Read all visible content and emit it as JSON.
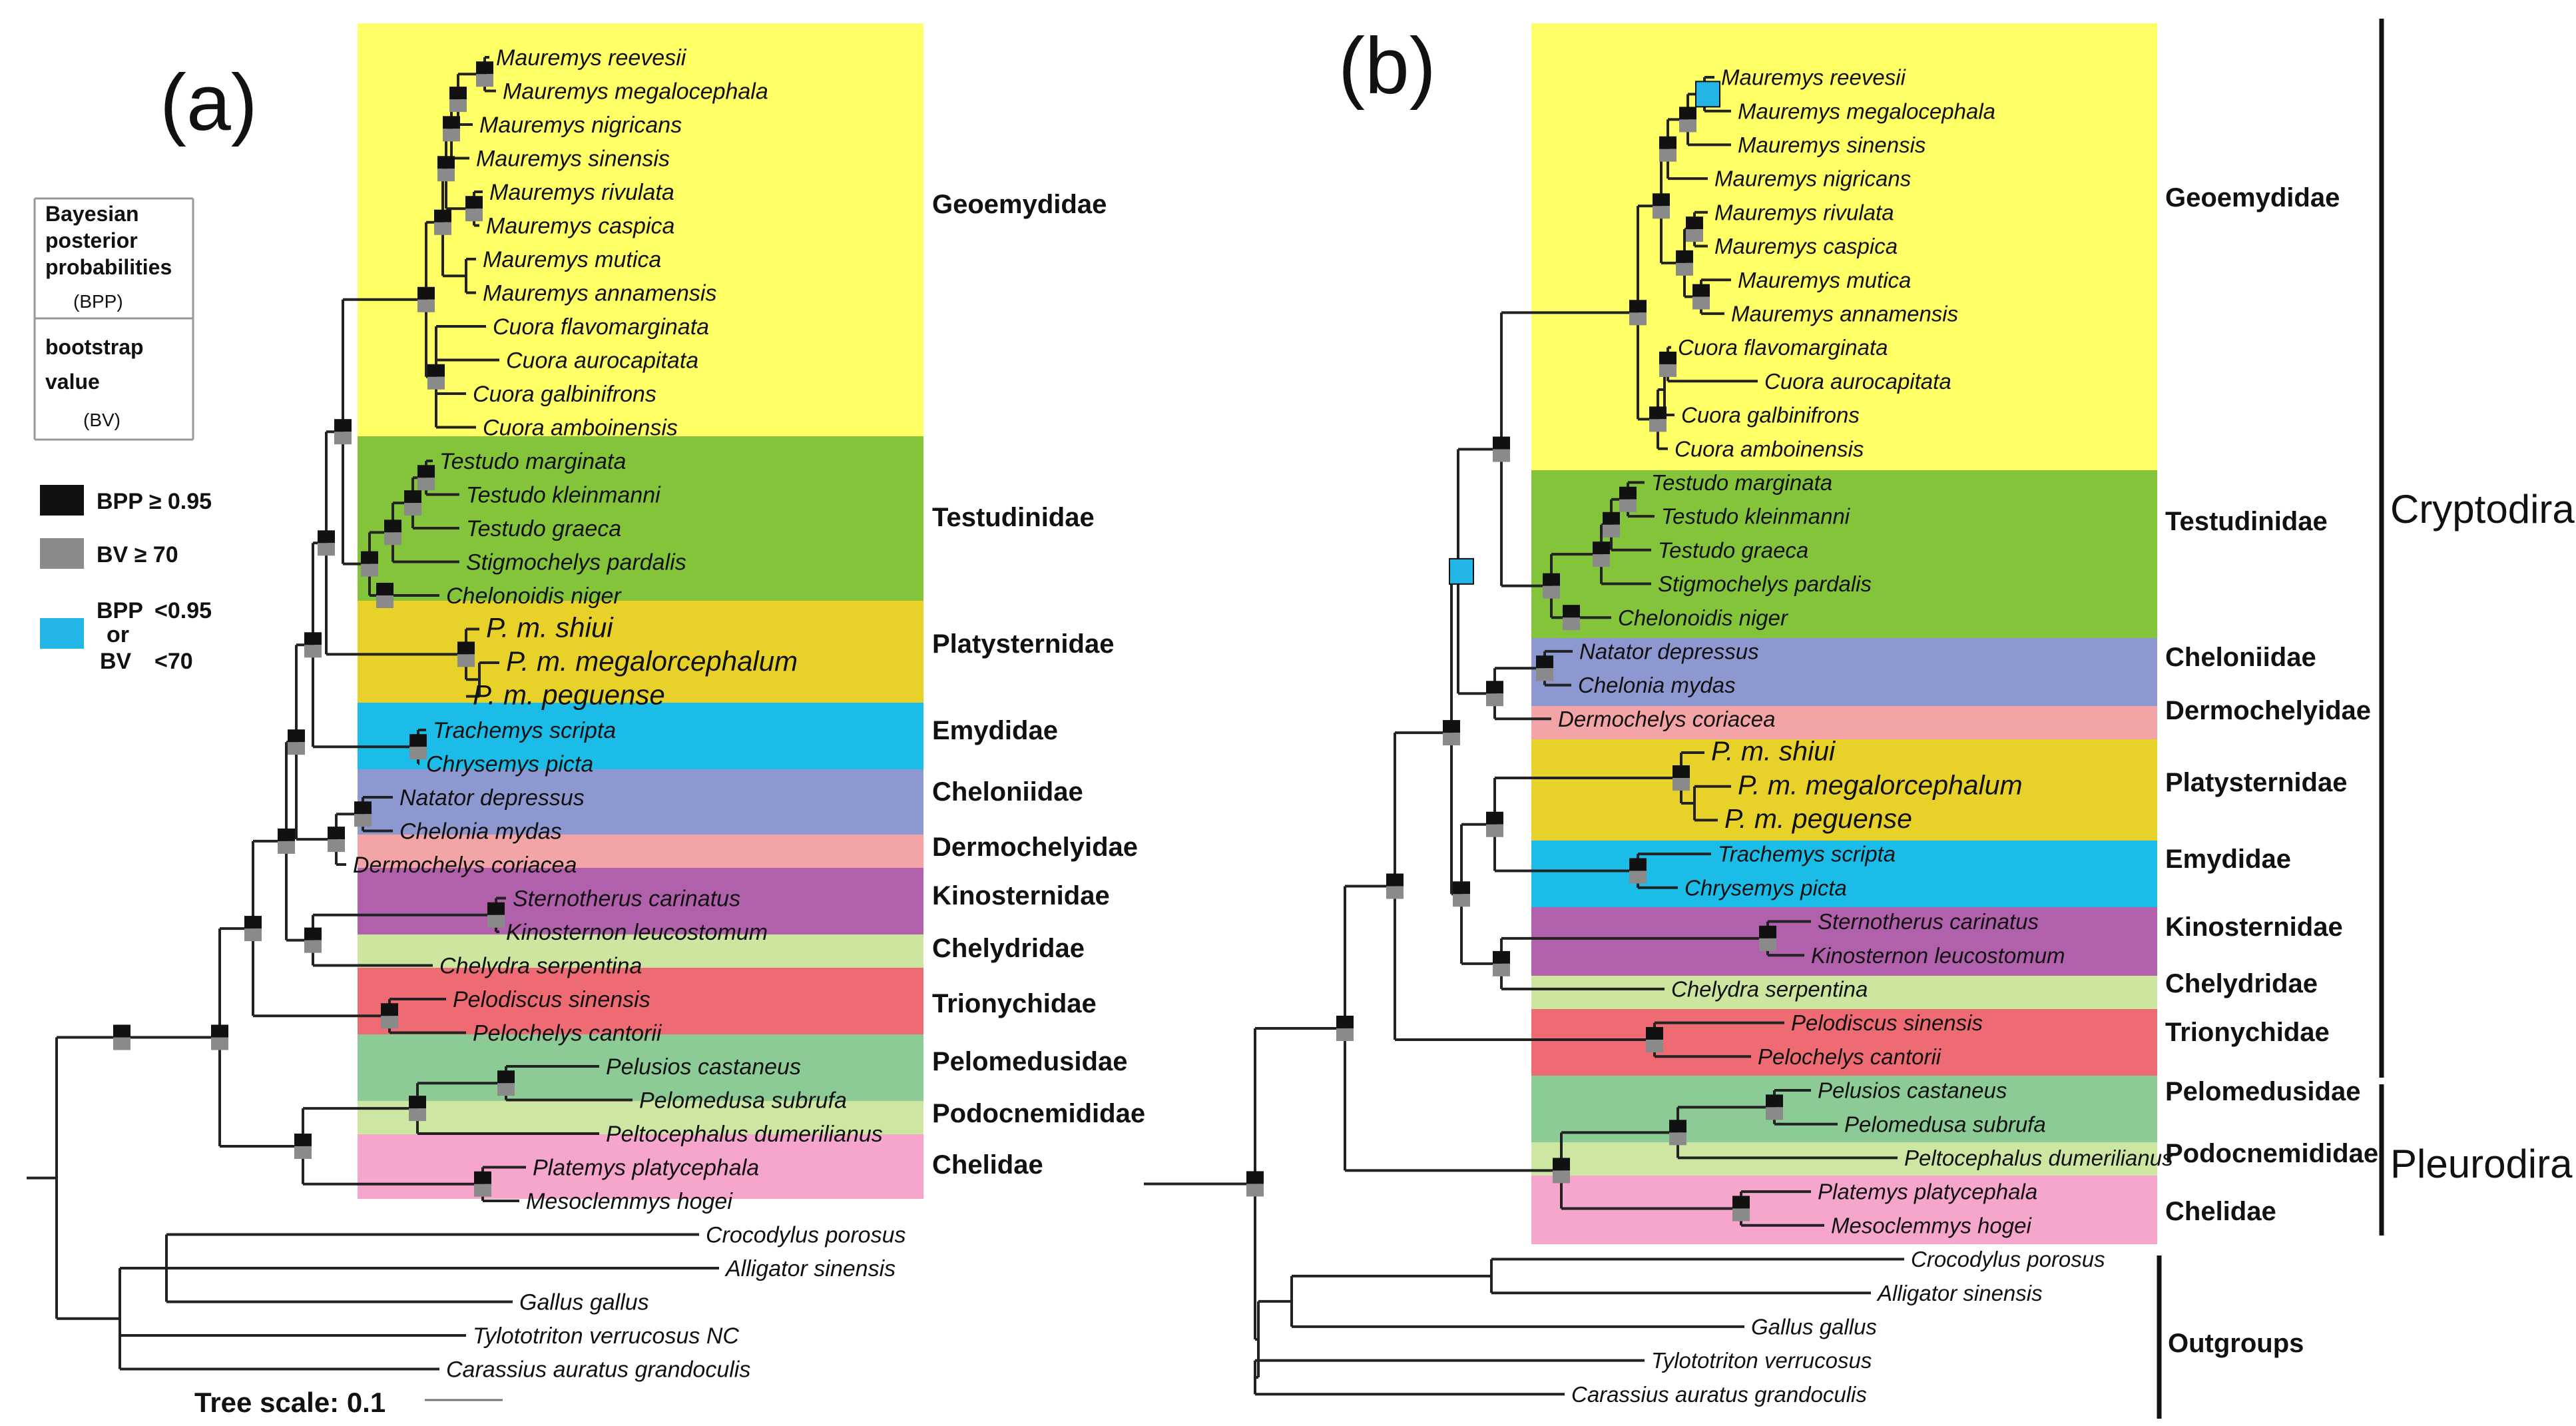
{
  "colors": {
    "Geoemydidae": "#ffff66",
    "Testudinidae": "#84c43a",
    "Platysternidae": "#e8d22a",
    "Emydidae": "#1bbde8",
    "Cheloniidae": "#8e98d0",
    "Dermochelyidae": "#f3a4a6",
    "Kinosternidae": "#b160ac",
    "Chelydridae": "#cce59f",
    "Trionychidae": "#ef6b74",
    "Pelomedusidae": "#8ccb95",
    "Podocnemididae": "#cde7a3",
    "Chelidae": "#f6a5cc",
    "node_bpp": "#111111",
    "node_bv": "#8a8a8a",
    "node_low": "#22b5e6",
    "highlight_taxon": "#e8201c"
  },
  "panel_a": {
    "label": "(a)",
    "taxa": [
      "Mauremys reevesii",
      "Mauremys megalocephala",
      "Mauremys nigricans",
      "Mauremys sinensis",
      "Mauremys rivulata",
      "Mauremys caspica",
      "Mauremys mutica",
      "Mauremys annamensis",
      "Cuora flavomarginata",
      "Cuora aurocapitata",
      "Cuora galbinifrons",
      "Cuora amboinensis",
      "Testudo marginata",
      "Testudo kleinmanni",
      "Testudo graeca",
      "Stigmochelys pardalis",
      "Chelonoidis niger",
      "P. m. shiui",
      "P. m. megalorcephalum",
      "P. m. peguense",
      "Trachemys scripta",
      "Chrysemys picta",
      "Natator depressus",
      "Chelonia mydas",
      "Dermochelys coriacea",
      "Sternotherus carinatus",
      "Kinosternon leucostomum",
      "Chelydra serpentina",
      "Pelodiscus sinensis",
      "Pelochelys cantorii",
      "Pelusios castaneus",
      "Pelomedusa subrufa",
      "Peltocephalus dumerilianus",
      "Platemys platycephala",
      "Mesoclemmys hogei",
      "Crocodylus porosus",
      "Alligator sinensis",
      "Gallus gallus",
      "Tylototriton verrucosus NC",
      "Carassius auratus grandoculis"
    ],
    "families": [
      "Geoemydidae",
      "Testudinidae",
      "Platysternidae",
      "Emydidae",
      "Cheloniidae",
      "Dermochelyidae",
      "Kinosternidae",
      "Chelydridae",
      "Trionychidae",
      "Pelomedusidae",
      "Podocnemididae",
      "Chelidae"
    ],
    "scale_label": "Tree scale: 0.1"
  },
  "panel_b": {
    "label": "(b)",
    "taxa": [
      "Mauremys reevesii",
      "Mauremys megalocephala",
      "Mauremys sinensis",
      "Mauremys nigricans",
      "Mauremys rivulata",
      "Mauremys caspica",
      "Mauremys mutica",
      "Mauremys annamensis",
      "Cuora flavomarginata",
      "Cuora aurocapitata",
      "Cuora galbinifrons",
      "Cuora amboinensis",
      "Testudo marginata",
      "Testudo kleinmanni",
      "Testudo graeca",
      "Stigmochelys pardalis",
      "Chelonoidis niger",
      "Natator depressus",
      "Chelonia mydas",
      "Dermochelys coriacea",
      "P. m. shiui",
      "P. m. megalorcephalum",
      "P. m. peguense",
      "Trachemys scripta",
      "Chrysemys picta",
      "Sternotherus carinatus",
      "Kinosternon leucostomum",
      "Chelydra serpentina",
      "Pelodiscus sinensis",
      "Pelochelys cantorii",
      "Pelusios castaneus",
      "Pelomedusa subrufa",
      "Peltocephalus dumerilianus",
      "Platemys platycephala",
      "Mesoclemmys hogei",
      "Crocodylus porosus",
      "Alligator sinensis",
      "Gallus gallus",
      "Tylototriton verrucosus",
      "Carassius auratus grandoculis"
    ],
    "families": [
      "Geoemydidae",
      "Testudinidae",
      "Cheloniidae",
      "Dermochelyidae",
      "Platysternidae",
      "Emydidae",
      "Kinosternidae",
      "Chelydridae",
      "Trionychidae",
      "Pelomedusidae",
      "Podocnemididae",
      "Chelidae"
    ],
    "groups": [
      "Cryptodira",
      "Pleurodira",
      "Outgroups"
    ]
  },
  "legend": {
    "bpp_title": [
      "Bayesian",
      "posterior",
      "probabilities"
    ],
    "bpp_abbr": "(BPP)",
    "bv_title": [
      "bootstrap",
      "value"
    ],
    "bv_abbr": "(BV)",
    "item_bpp": "BPP  ≥ 0.95",
    "item_bv": "BV     ≥ 70",
    "item_low_1": "BPP",
    "item_low_or": "or",
    "item_low_2": "BV",
    "item_low_val1": "<0.95",
    "item_low_val2": "<70"
  }
}
